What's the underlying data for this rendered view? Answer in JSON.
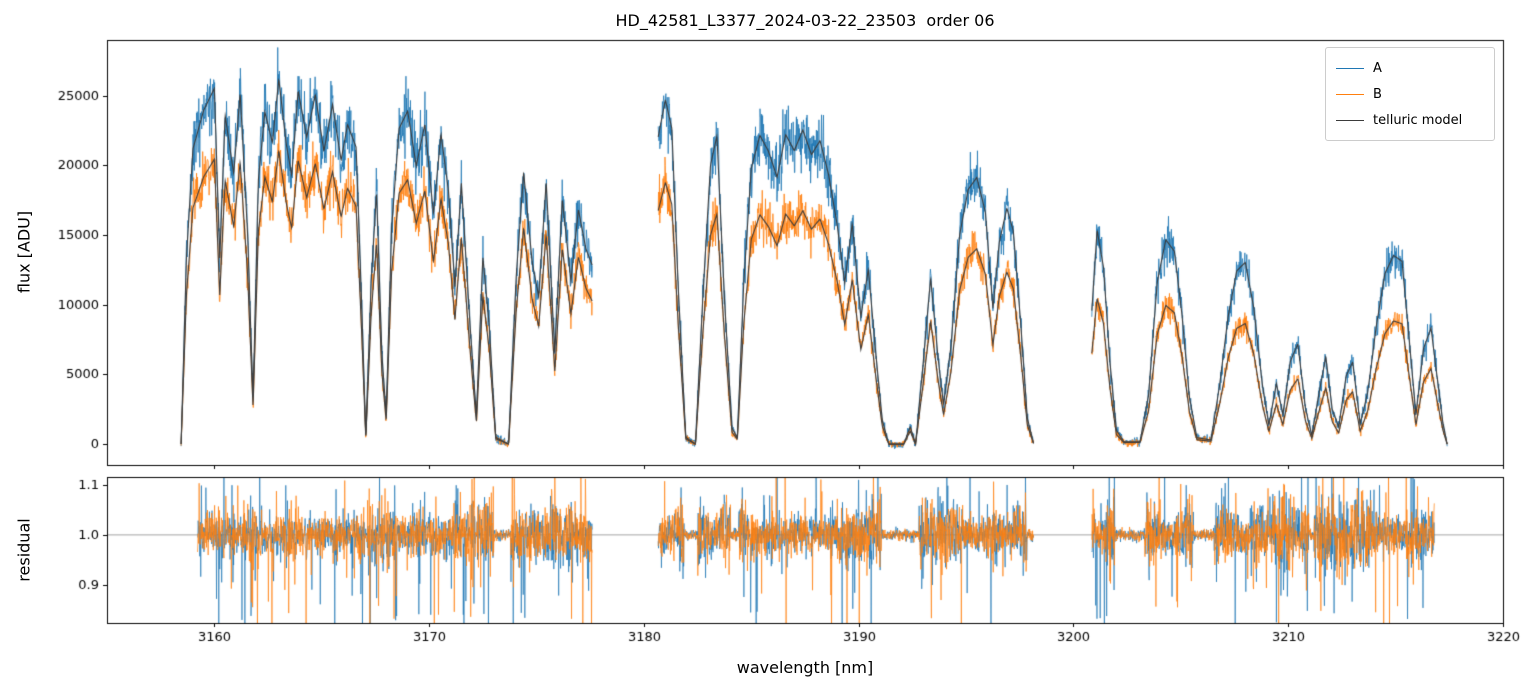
{
  "chart_data": {
    "type": "line",
    "title": "HD_42581_L3377_2024-03-22_23503  order 06",
    "xlabel": "wavelength [nm]",
    "xlim": [
      3155,
      3220
    ],
    "xticks": [
      3160,
      3170,
      3180,
      3190,
      3200,
      3210,
      3220
    ],
    "wavelength_range_nm": [
      3158.45,
      3217.4
    ],
    "gaps_nm": [
      [
        3177.6,
        3180.65
      ],
      [
        3198.15,
        3200.85
      ]
    ],
    "grid": false,
    "legend_position": "upper right",
    "top_panel": {
      "ylabel": "flux [ADU]",
      "ylim": [
        -1500,
        29000
      ],
      "yticks": [
        0,
        5000,
        10000,
        15000,
        20000,
        25000
      ],
      "series": [
        {
          "name": "A",
          "color": "#1f77b4",
          "role": "observed spectrum, fiber A"
        },
        {
          "name": "B",
          "color": "#ff7f0e",
          "role": "observed spectrum, fiber B"
        },
        {
          "name": "telluric model",
          "color": "#3b3b3b",
          "role": "model overplotted on both A and B"
        }
      ],
      "noise": {
        "A_rel": 0.045,
        "A_floor": 150,
        "B_rel": 0.04,
        "B_floor": 120
      },
      "continuum_A_ADU": [
        [
          3158.45,
          24000
        ],
        [
          3160,
          26600
        ],
        [
          3161.5,
          27200
        ],
        [
          3163,
          27000
        ],
        [
          3165,
          26300
        ],
        [
          3167,
          25900
        ],
        [
          3169,
          25700
        ],
        [
          3171,
          25200
        ],
        [
          3173,
          24200
        ],
        [
          3175,
          23600
        ],
        [
          3177.6,
          23300
        ],
        [
          3180.65,
          25800
        ],
        [
          3182,
          24500
        ],
        [
          3183.5,
          23200
        ],
        [
          3185,
          23300
        ],
        [
          3187,
          23400
        ],
        [
          3188.5,
          22800
        ],
        [
          3190,
          21800
        ],
        [
          3192,
          21000
        ],
        [
          3193.5,
          20500
        ],
        [
          3195,
          19900
        ],
        [
          3197,
          19200
        ],
        [
          3198.15,
          18800
        ],
        [
          3200.85,
          17200
        ],
        [
          3202,
          16600
        ],
        [
          3204,
          16100
        ],
        [
          3205.5,
          15300
        ],
        [
          3207,
          14800
        ],
        [
          3208.3,
          14400
        ],
        [
          3209.5,
          13500
        ],
        [
          3211,
          12800
        ],
        [
          3212.5,
          12300
        ],
        [
          3213.5,
          12200
        ],
        [
          3214.5,
          13600
        ],
        [
          3215.3,
          14900
        ],
        [
          3216.2,
          13800
        ],
        [
          3217.4,
          12800
        ]
      ],
      "continuum_B_ADU": [
        [
          3158.45,
          19200
        ],
        [
          3160,
          21300
        ],
        [
          3161.5,
          21900
        ],
        [
          3163,
          21700
        ],
        [
          3165,
          21100
        ],
        [
          3167,
          20700
        ],
        [
          3169,
          20400
        ],
        [
          3171,
          19900
        ],
        [
          3173,
          19200
        ],
        [
          3175,
          18800
        ],
        [
          3177.6,
          18600
        ],
        [
          3180.65,
          19600
        ],
        [
          3182,
          18600
        ],
        [
          3183.5,
          17300
        ],
        [
          3185,
          17300
        ],
        [
          3187,
          17400
        ],
        [
          3188.5,
          16900
        ],
        [
          3190,
          16200
        ],
        [
          3192,
          15600
        ],
        [
          3193.5,
          15200
        ],
        [
          3195,
          14600
        ],
        [
          3197,
          14000
        ],
        [
          3198.15,
          13700
        ],
        [
          3200.85,
          11700
        ],
        [
          3202,
          11300
        ],
        [
          3204,
          10900
        ],
        [
          3205.5,
          10500
        ],
        [
          3207,
          10000
        ],
        [
          3208.3,
          9500
        ],
        [
          3209.5,
          8900
        ],
        [
          3211,
          8300
        ],
        [
          3212.5,
          7900
        ],
        [
          3213.5,
          7800
        ],
        [
          3214.5,
          8800
        ],
        [
          3215.3,
          9800
        ],
        [
          3216.2,
          9000
        ],
        [
          3217.4,
          8300
        ]
      ],
      "telluric_transmission": [
        [
          3158.45,
          0.0
        ],
        [
          3158.7,
          0.55
        ],
        [
          3159.0,
          0.85
        ],
        [
          3159.5,
          0.93
        ],
        [
          3160.0,
          0.96
        ],
        [
          3160.25,
          0.5
        ],
        [
          3160.5,
          0.88
        ],
        [
          3160.9,
          0.72
        ],
        [
          3161.2,
          0.93
        ],
        [
          3161.55,
          0.55
        ],
        [
          3161.8,
          0.12
        ],
        [
          3162.05,
          0.7
        ],
        [
          3162.35,
          0.88
        ],
        [
          3162.7,
          0.8
        ],
        [
          3163.0,
          0.97
        ],
        [
          3163.35,
          0.8
        ],
        [
          3163.6,
          0.72
        ],
        [
          3163.9,
          0.95
        ],
        [
          3164.3,
          0.83
        ],
        [
          3164.7,
          0.95
        ],
        [
          3165.1,
          0.8
        ],
        [
          3165.5,
          0.93
        ],
        [
          3165.9,
          0.78
        ],
        [
          3166.2,
          0.88
        ],
        [
          3166.6,
          0.82
        ],
        [
          3166.85,
          0.4
        ],
        [
          3167.05,
          0.02
        ],
        [
          3167.3,
          0.45
        ],
        [
          3167.55,
          0.7
        ],
        [
          3167.8,
          0.25
        ],
        [
          3168.0,
          0.08
        ],
        [
          3168.25,
          0.6
        ],
        [
          3168.6,
          0.88
        ],
        [
          3169.0,
          0.93
        ],
        [
          3169.4,
          0.78
        ],
        [
          3169.8,
          0.9
        ],
        [
          3170.2,
          0.65
        ],
        [
          3170.55,
          0.88
        ],
        [
          3170.9,
          0.72
        ],
        [
          3171.2,
          0.45
        ],
        [
          3171.5,
          0.75
        ],
        [
          3171.9,
          0.35
        ],
        [
          3172.2,
          0.08
        ],
        [
          3172.5,
          0.55
        ],
        [
          3172.8,
          0.35
        ],
        [
          3173.1,
          0.02
        ],
        [
          3173.7,
          0.0
        ],
        [
          3174.05,
          0.5
        ],
        [
          3174.4,
          0.82
        ],
        [
          3174.8,
          0.55
        ],
        [
          3175.1,
          0.45
        ],
        [
          3175.45,
          0.8
        ],
        [
          3175.85,
          0.28
        ],
        [
          3176.2,
          0.75
        ],
        [
          3176.6,
          0.5
        ],
        [
          3176.95,
          0.72
        ],
        [
          3177.3,
          0.6
        ],
        [
          3177.6,
          0.55
        ],
        [
          3180.65,
          0.85
        ],
        [
          3181.0,
          0.97
        ],
        [
          3181.3,
          0.9
        ],
        [
          3181.6,
          0.45
        ],
        [
          3181.95,
          0.02
        ],
        [
          3182.4,
          0.0
        ],
        [
          3182.75,
          0.45
        ],
        [
          3183.1,
          0.85
        ],
        [
          3183.4,
          0.95
        ],
        [
          3183.75,
          0.45
        ],
        [
          3184.1,
          0.05
        ],
        [
          3184.35,
          0.02
        ],
        [
          3184.65,
          0.5
        ],
        [
          3185.0,
          0.85
        ],
        [
          3185.4,
          0.95
        ],
        [
          3185.8,
          0.9
        ],
        [
          3186.2,
          0.82
        ],
        [
          3186.6,
          0.95
        ],
        [
          3187.0,
          0.9
        ],
        [
          3187.4,
          0.97
        ],
        [
          3187.8,
          0.9
        ],
        [
          3188.2,
          0.95
        ],
        [
          3188.6,
          0.85
        ],
        [
          3189.0,
          0.7
        ],
        [
          3189.35,
          0.52
        ],
        [
          3189.7,
          0.72
        ],
        [
          3190.1,
          0.42
        ],
        [
          3190.45,
          0.58
        ],
        [
          3190.8,
          0.3
        ],
        [
          3191.1,
          0.08
        ],
        [
          3191.4,
          0.0
        ],
        [
          3192.1,
          0.0
        ],
        [
          3192.4,
          0.06
        ],
        [
          3192.65,
          0.0
        ],
        [
          3193.0,
          0.28
        ],
        [
          3193.35,
          0.58
        ],
        [
          3193.7,
          0.3
        ],
        [
          3193.95,
          0.14
        ],
        [
          3194.3,
          0.35
        ],
        [
          3194.7,
          0.75
        ],
        [
          3195.1,
          0.92
        ],
        [
          3195.5,
          0.97
        ],
        [
          3195.9,
          0.85
        ],
        [
          3196.25,
          0.5
        ],
        [
          3196.55,
          0.75
        ],
        [
          3196.9,
          0.88
        ],
        [
          3197.2,
          0.8
        ],
        [
          3197.55,
          0.45
        ],
        [
          3197.85,
          0.1
        ],
        [
          3198.15,
          0.0
        ],
        [
          3200.85,
          0.55
        ],
        [
          3201.1,
          0.9
        ],
        [
          3201.4,
          0.75
        ],
        [
          3201.7,
          0.35
        ],
        [
          3202.0,
          0.06
        ],
        [
          3202.35,
          0.01
        ],
        [
          3203.1,
          0.01
        ],
        [
          3203.5,
          0.22
        ],
        [
          3203.9,
          0.72
        ],
        [
          3204.3,
          0.92
        ],
        [
          3204.7,
          0.88
        ],
        [
          3205.05,
          0.6
        ],
        [
          3205.4,
          0.22
        ],
        [
          3205.75,
          0.03
        ],
        [
          3206.4,
          0.02
        ],
        [
          3206.8,
          0.28
        ],
        [
          3207.2,
          0.62
        ],
        [
          3207.6,
          0.85
        ],
        [
          3208.0,
          0.9
        ],
        [
          3208.4,
          0.68
        ],
        [
          3208.8,
          0.3
        ],
        [
          3209.1,
          0.1
        ],
        [
          3209.45,
          0.32
        ],
        [
          3209.75,
          0.16
        ],
        [
          3210.1,
          0.45
        ],
        [
          3210.45,
          0.55
        ],
        [
          3210.8,
          0.2
        ],
        [
          3211.1,
          0.05
        ],
        [
          3211.45,
          0.3
        ],
        [
          3211.75,
          0.5
        ],
        [
          3212.05,
          0.2
        ],
        [
          3212.35,
          0.1
        ],
        [
          3212.7,
          0.4
        ],
        [
          3213.0,
          0.48
        ],
        [
          3213.35,
          0.12
        ],
        [
          3213.7,
          0.3
        ],
        [
          3214.1,
          0.65
        ],
        [
          3214.5,
          0.9
        ],
        [
          3214.9,
          0.95
        ],
        [
          3215.3,
          0.88
        ],
        [
          3215.65,
          0.5
        ],
        [
          3215.95,
          0.15
        ],
        [
          3216.3,
          0.5
        ],
        [
          3216.65,
          0.62
        ],
        [
          3216.95,
          0.35
        ],
        [
          3217.2,
          0.12
        ],
        [
          3217.4,
          0.0
        ]
      ]
    },
    "bottom_panel": {
      "ylabel": "residual",
      "ylim": [
        0.825,
        1.115
      ],
      "yticks": [
        0.9,
        1.0,
        1.1
      ],
      "reference_line": 1.0,
      "reference_line_color": "#9a9a9a",
      "data_range_nm": [
        3159.2,
        3216.8
      ],
      "series": [
        {
          "name": "A residual",
          "color": "#1f77b4"
        },
        {
          "name": "B residual",
          "color": "#ff7f0e"
        }
      ]
    }
  }
}
